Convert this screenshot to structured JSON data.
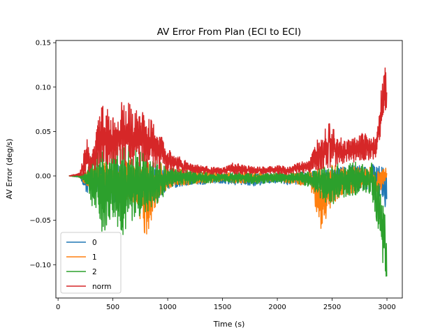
{
  "chart_data": {
    "type": "line",
    "title": "AV Error From Plan (ECI to ECI)",
    "xlabel": "Time (s)",
    "ylabel": "AV Error (deg/s)",
    "xlim": [
      -20,
      3140
    ],
    "ylim": [
      -0.1375,
      0.1525
    ],
    "xticks": [
      0,
      500,
      1000,
      1500,
      2000,
      2500,
      3000
    ],
    "yticks": [
      -0.1,
      -0.05,
      0.0,
      0.05,
      0.1,
      0.15
    ],
    "xtick_labels": [
      "0",
      "500",
      "1000",
      "1500",
      "2000",
      "2500",
      "3000"
    ],
    "ytick_labels": [
      "−0.10",
      "−0.05",
      "0.00",
      "0.05",
      "0.10",
      "0.15"
    ],
    "grid": false,
    "legend_position": "lower-left",
    "series": [
      {
        "name": "0",
        "color": "#1f77b4",
        "envelope": {
          "x": [
            100,
            200,
            260,
            300,
            400,
            500,
            600,
            700,
            800,
            900,
            1000,
            1100,
            1200,
            1300,
            1400,
            1500,
            1600,
            1700,
            1800,
            1900,
            2000,
            2100,
            2200,
            2300,
            2400,
            2500,
            2600,
            2700,
            2800,
            2850,
            2900,
            2950,
            3000
          ],
          "high": [
            0.0,
            0.002,
            0.004,
            0.006,
            0.012,
            0.015,
            0.014,
            0.015,
            0.012,
            0.012,
            0.008,
            0.006,
            0.004,
            0.004,
            0.003,
            0.003,
            0.003,
            0.002,
            0.003,
            0.003,
            0.003,
            0.003,
            0.004,
            0.005,
            0.006,
            0.008,
            0.01,
            0.012,
            0.012,
            0.012,
            0.014,
            0.015,
            0.005
          ],
          "low": [
            0.0,
            -0.002,
            -0.02,
            -0.015,
            -0.025,
            -0.03,
            -0.028,
            -0.028,
            -0.025,
            -0.03,
            -0.015,
            -0.012,
            -0.01,
            -0.01,
            -0.008,
            -0.008,
            -0.01,
            -0.01,
            -0.012,
            -0.008,
            -0.008,
            -0.01,
            -0.01,
            -0.008,
            -0.012,
            -0.015,
            -0.015,
            -0.015,
            -0.015,
            -0.018,
            -0.02,
            -0.028,
            -0.038
          ]
        }
      },
      {
        "name": "1",
        "color": "#ff7f0e",
        "envelope": {
          "x": [
            100,
            200,
            260,
            300,
            400,
            500,
            600,
            700,
            800,
            900,
            1000,
            1100,
            1200,
            1300,
            1400,
            1500,
            1600,
            1700,
            1800,
            1900,
            2000,
            2100,
            2200,
            2300,
            2400,
            2500,
            2600,
            2700,
            2800,
            2850,
            2900,
            2950,
            3000
          ],
          "high": [
            0.0,
            0.002,
            0.006,
            0.008,
            0.015,
            0.018,
            0.016,
            0.02,
            0.018,
            0.015,
            0.012,
            0.008,
            0.006,
            0.005,
            0.004,
            0.003,
            0.004,
            0.004,
            0.004,
            0.003,
            0.003,
            0.003,
            0.004,
            0.006,
            0.01,
            0.012,
            0.01,
            0.01,
            0.008,
            0.01,
            0.004,
            0.006,
            0.01
          ],
          "low": [
            0.0,
            -0.002,
            -0.012,
            -0.01,
            -0.018,
            -0.022,
            -0.025,
            -0.03,
            -0.068,
            -0.035,
            -0.015,
            -0.012,
            -0.01,
            -0.008,
            -0.008,
            -0.006,
            -0.008,
            -0.008,
            -0.008,
            -0.006,
            -0.006,
            -0.008,
            -0.01,
            -0.012,
            -0.06,
            -0.032,
            -0.02,
            -0.022,
            -0.012,
            -0.015,
            -0.025,
            -0.015,
            0.0
          ]
        }
      },
      {
        "name": "2",
        "color": "#2ca02c",
        "envelope": {
          "x": [
            100,
            200,
            260,
            300,
            400,
            500,
            600,
            700,
            800,
            900,
            1000,
            1100,
            1200,
            1300,
            1400,
            1500,
            1600,
            1700,
            1800,
            1900,
            2000,
            2100,
            2200,
            2300,
            2400,
            2500,
            2600,
            2700,
            2800,
            2850,
            2900,
            2950,
            3000
          ],
          "high": [
            0.0,
            0.002,
            0.004,
            0.02,
            0.03,
            0.03,
            0.035,
            0.032,
            0.025,
            0.018,
            0.01,
            0.008,
            0.006,
            0.005,
            0.004,
            0.003,
            0.004,
            0.004,
            0.004,
            0.004,
            0.004,
            0.004,
            0.004,
            0.006,
            0.01,
            0.014,
            0.015,
            0.016,
            0.012,
            0.015,
            0.012,
            -0.02,
            -0.06
          ],
          "low": [
            0.0,
            -0.002,
            -0.01,
            -0.03,
            -0.065,
            -0.05,
            -0.072,
            -0.045,
            -0.045,
            -0.035,
            -0.015,
            -0.01,
            -0.01,
            -0.008,
            -0.008,
            -0.006,
            -0.008,
            -0.008,
            -0.01,
            -0.008,
            -0.008,
            -0.008,
            -0.01,
            -0.012,
            -0.028,
            -0.032,
            -0.025,
            -0.022,
            -0.018,
            -0.02,
            -0.045,
            -0.095,
            -0.133
          ]
        }
      },
      {
        "name": "norm",
        "color": "#d62728",
        "envelope": {
          "x": [
            100,
            200,
            260,
            300,
            400,
            500,
            600,
            700,
            800,
            900,
            1000,
            1100,
            1200,
            1300,
            1400,
            1500,
            1600,
            1700,
            1800,
            1900,
            2000,
            2100,
            2200,
            2300,
            2400,
            2500,
            2600,
            2700,
            2800,
            2850,
            2900,
            2950,
            3000
          ],
          "high": [
            0.0,
            0.004,
            0.045,
            0.02,
            0.085,
            0.065,
            0.087,
            0.075,
            0.07,
            0.055,
            0.03,
            0.022,
            0.015,
            0.012,
            0.01,
            0.009,
            0.015,
            0.012,
            0.01,
            0.01,
            0.012,
            0.01,
            0.015,
            0.02,
            0.055,
            0.06,
            0.04,
            0.045,
            0.05,
            0.045,
            0.042,
            0.1,
            0.137
          ],
          "low": [
            0.0,
            0.0,
            0.002,
            0.005,
            0.01,
            0.01,
            0.012,
            0.012,
            0.01,
            0.008,
            0.005,
            0.004,
            0.003,
            0.003,
            0.002,
            0.002,
            0.002,
            0.002,
            0.002,
            0.002,
            0.002,
            0.002,
            0.003,
            0.004,
            0.008,
            0.01,
            0.012,
            0.015,
            0.018,
            0.018,
            0.02,
            0.05,
            0.08
          ]
        }
      }
    ]
  }
}
